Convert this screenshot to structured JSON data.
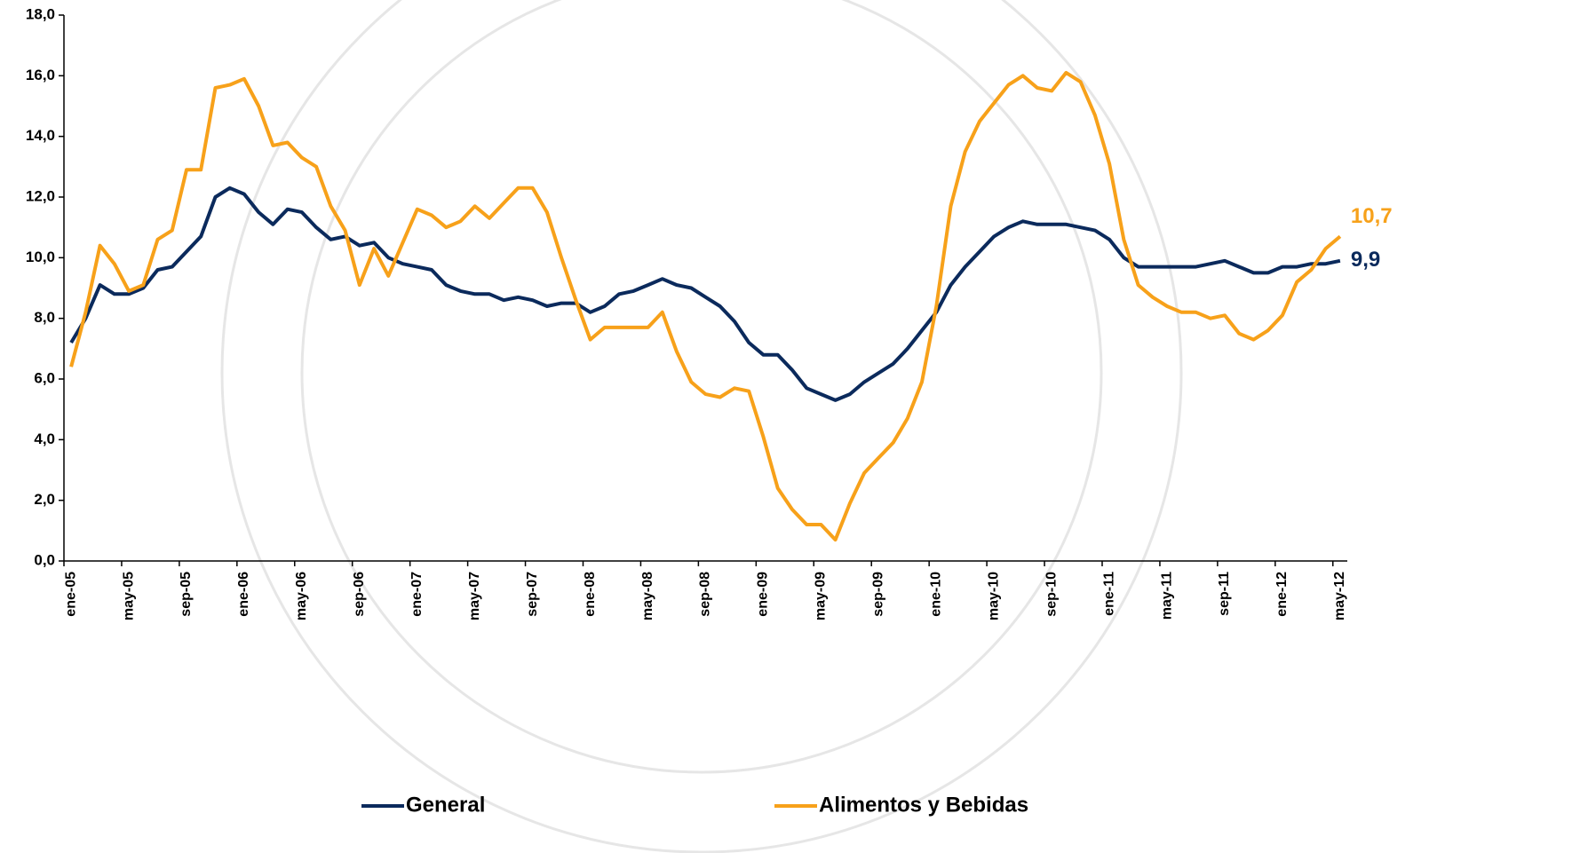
{
  "chart_data": {
    "type": "line",
    "categories": [
      "ene-05",
      null,
      null,
      null,
      "may-05",
      null,
      null,
      null,
      "sep-05",
      null,
      null,
      null,
      "ene-06",
      null,
      null,
      null,
      "may-06",
      null,
      null,
      null,
      "sep-06",
      null,
      null,
      null,
      "ene-07",
      null,
      null,
      null,
      "may-07",
      null,
      null,
      null,
      "sep-07",
      null,
      null,
      null,
      "ene-08",
      null,
      null,
      null,
      "may-08",
      null,
      null,
      null,
      "sep-08",
      null,
      null,
      null,
      "ene-09",
      null,
      null,
      null,
      "may-09",
      null,
      null,
      null,
      "sep-09",
      null,
      null,
      null,
      "ene-10",
      null,
      null,
      null,
      "may-10",
      null,
      null,
      null,
      "sep-10",
      null,
      null,
      null,
      "ene-11",
      null,
      null,
      null,
      "may-11",
      null,
      null,
      null,
      "sep-11",
      null,
      null,
      null,
      "ene-12",
      null,
      null,
      null,
      "may-12"
    ],
    "series": [
      {
        "name": "General",
        "color": "#0b2a5c",
        "values": [
          7.2,
          8.0,
          9.1,
          8.8,
          8.8,
          9.0,
          9.6,
          9.7,
          10.2,
          10.7,
          12.0,
          12.3,
          12.1,
          11.5,
          11.1,
          11.6,
          11.5,
          11.0,
          10.6,
          10.7,
          10.4,
          10.5,
          10.0,
          9.8,
          9.7,
          9.6,
          9.1,
          8.9,
          8.8,
          8.8,
          8.6,
          8.7,
          8.6,
          8.4,
          8.5,
          8.5,
          8.2,
          8.4,
          8.8,
          8.9,
          9.1,
          9.3,
          9.1,
          9.0,
          8.7,
          8.4,
          7.9,
          7.2,
          6.8,
          6.8,
          6.3,
          5.7,
          5.5,
          5.3,
          5.5,
          5.9,
          6.2,
          6.5,
          7.0,
          7.6,
          8.2,
          9.1,
          9.7,
          10.2,
          10.7,
          11.0,
          11.2,
          11.1,
          11.1,
          11.1,
          11.0,
          10.9,
          10.6,
          10.0,
          9.7,
          9.7,
          9.7,
          9.7,
          9.7,
          9.8,
          9.9,
          9.7,
          9.5,
          9.5,
          9.7,
          9.7,
          9.8,
          9.8,
          9.9
        ],
        "value_labels": [
          null,
          null,
          null,
          null,
          null,
          null,
          null,
          null,
          null,
          null,
          null,
          null,
          null,
          null,
          null,
          null,
          null,
          null,
          null,
          null,
          null,
          null,
          null,
          null,
          null,
          null,
          null,
          null,
          null,
          null,
          null,
          null,
          null,
          null,
          null,
          null,
          null,
          null,
          null,
          null,
          null,
          null,
          null,
          null,
          null,
          null,
          null,
          null,
          null,
          null,
          null,
          null,
          null,
          null,
          null,
          null,
          null,
          null,
          null,
          null,
          null,
          null,
          null,
          null,
          null,
          null,
          null,
          null,
          null,
          null,
          null,
          null,
          null,
          null,
          null,
          null,
          null,
          null,
          null,
          null,
          null,
          null,
          null,
          null,
          null,
          null,
          null,
          null,
          "9,9"
        ]
      },
      {
        "name": "Alimentos y Bebidas",
        "color": "#f7a11a",
        "values": [
          6.4,
          8.2,
          10.4,
          9.8,
          8.9,
          9.1,
          10.6,
          10.9,
          12.9,
          12.9,
          15.6,
          15.7,
          15.9,
          15.0,
          13.7,
          13.8,
          13.3,
          13.0,
          11.7,
          10.9,
          9.1,
          10.3,
          9.4,
          10.5,
          11.6,
          11.4,
          11.0,
          11.2,
          11.7,
          11.3,
          11.8,
          12.3,
          12.3,
          11.5,
          10.0,
          8.6,
          7.3,
          7.7,
          7.7,
          7.7,
          7.7,
          8.2,
          6.9,
          5.9,
          5.5,
          5.4,
          5.7,
          5.6,
          4.1,
          2.4,
          1.7,
          1.2,
          1.2,
          0.7,
          1.9,
          2.9,
          3.4,
          3.9,
          4.7,
          5.9,
          8.4,
          11.7,
          13.5,
          14.5,
          15.1,
          15.7,
          16.0,
          15.6,
          15.5,
          16.1,
          15.8,
          14.7,
          13.1,
          10.6,
          9.1,
          8.7,
          8.4,
          8.2,
          8.2,
          8.0,
          8.1,
          7.5,
          7.3,
          7.6,
          8.1,
          9.2,
          9.6,
          10.3,
          10.7
        ],
        "value_labels": [
          null,
          null,
          null,
          null,
          null,
          null,
          null,
          null,
          null,
          null,
          null,
          null,
          null,
          null,
          null,
          null,
          null,
          null,
          null,
          null,
          null,
          null,
          null,
          null,
          null,
          null,
          null,
          null,
          null,
          null,
          null,
          null,
          null,
          null,
          null,
          null,
          null,
          null,
          null,
          null,
          null,
          null,
          null,
          null,
          null,
          null,
          null,
          null,
          null,
          null,
          null,
          null,
          null,
          null,
          null,
          null,
          null,
          null,
          null,
          null,
          null,
          null,
          null,
          null,
          null,
          null,
          null,
          null,
          null,
          null,
          null,
          null,
          null,
          null,
          null,
          null,
          null,
          null,
          null,
          null,
          null,
          null,
          null,
          null,
          null,
          null,
          null,
          null,
          "10,7"
        ]
      }
    ],
    "ylim": [
      0,
      18
    ],
    "yticks": [
      {
        "value": 0,
        "label": "0,0"
      },
      {
        "value": 2,
        "label": "2,0"
      },
      {
        "value": 4,
        "label": "4,0"
      },
      {
        "value": 6,
        "label": "6,0"
      },
      {
        "value": 8,
        "label": "8,0"
      },
      {
        "value": 10,
        "label": "10,0"
      },
      {
        "value": 12,
        "label": "12,0"
      },
      {
        "value": 14,
        "label": "14,0"
      },
      {
        "value": 16,
        "label": "16,0"
      },
      {
        "value": 18,
        "label": "18,0"
      }
    ],
    "grid": false,
    "legend": "bottom"
  }
}
